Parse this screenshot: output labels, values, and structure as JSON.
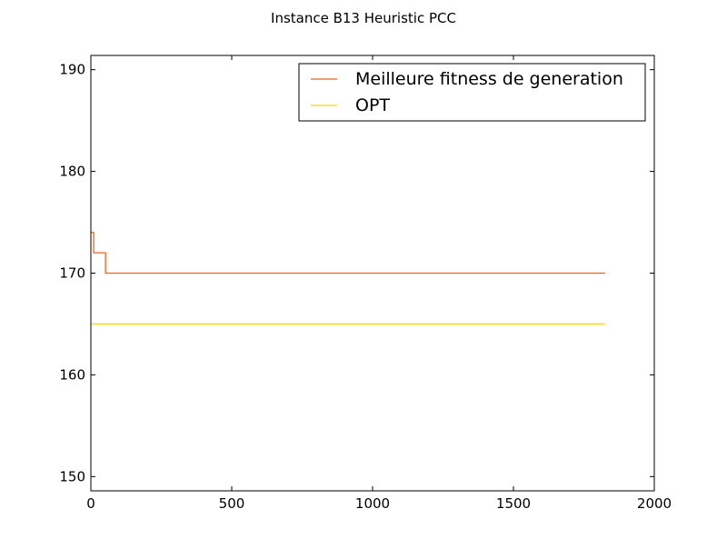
{
  "chart_data": {
    "type": "line",
    "title": "Instance B13 Heuristic PCC",
    "xlabel": "",
    "ylabel": "",
    "xlim": [
      0,
      2000
    ],
    "ylim": [
      148.6,
      191.4
    ],
    "x_ticks": [
      0,
      500,
      1000,
      1500,
      2000
    ],
    "y_ticks": [
      150,
      160,
      170,
      180,
      190
    ],
    "grid": false,
    "legend_position": "top-right",
    "series": [
      {
        "name": "Meilleure fitness de generation",
        "color": "#e8641c",
        "style": "step",
        "points": [
          [
            0,
            174
          ],
          [
            10,
            174
          ],
          [
            10,
            172
          ],
          [
            52,
            172
          ],
          [
            52,
            170
          ],
          [
            1825,
            170
          ]
        ]
      },
      {
        "name": "OPT",
        "color": "#ffd700",
        "style": "line",
        "points": [
          [
            0,
            165
          ],
          [
            1825,
            165
          ]
        ]
      }
    ]
  }
}
